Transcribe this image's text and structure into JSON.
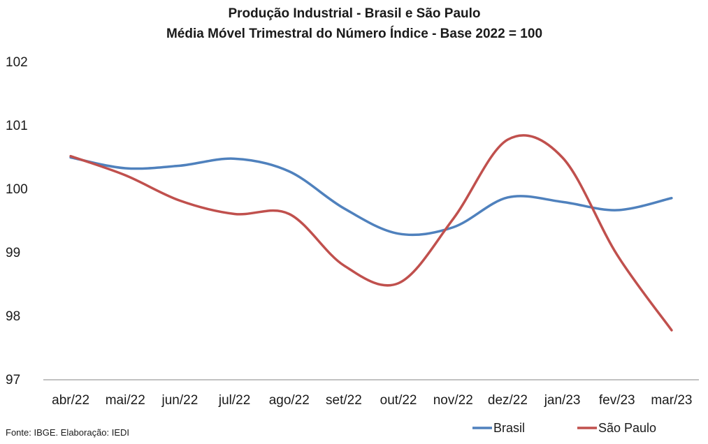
{
  "chart_data": {
    "type": "line",
    "title": "Produção Industrial - Brasil e São Paulo",
    "subtitle": "Média Móvel Trimestral do Número Índice - Base 2022 = 100",
    "xlabel": "",
    "ylabel": "",
    "categories": [
      "abr/22",
      "mai/22",
      "jun/22",
      "jul/22",
      "ago/22",
      "set/22",
      "out/22",
      "nov/22",
      "dez/22",
      "jan/23",
      "fev/23",
      "mar/23"
    ],
    "ylim": [
      97,
      102
    ],
    "yticks": [
      97,
      98,
      99,
      100,
      101,
      102
    ],
    "grid": false,
    "legend_position": "bottom-right",
    "smooth": true,
    "series": [
      {
        "name": "Brasil",
        "color": "#4f81bd",
        "values": [
          100.5,
          100.33,
          100.37,
          100.48,
          100.28,
          99.7,
          99.3,
          99.4,
          99.87,
          99.8,
          99.67,
          99.86
        ]
      },
      {
        "name": "São Paulo",
        "color": "#c0504d",
        "values": [
          100.52,
          100.22,
          99.82,
          99.61,
          99.61,
          98.8,
          98.52,
          99.53,
          100.78,
          100.5,
          98.97,
          97.78
        ]
      }
    ],
    "source": "Fonte: IBGE. Elaboração: IEDI"
  }
}
